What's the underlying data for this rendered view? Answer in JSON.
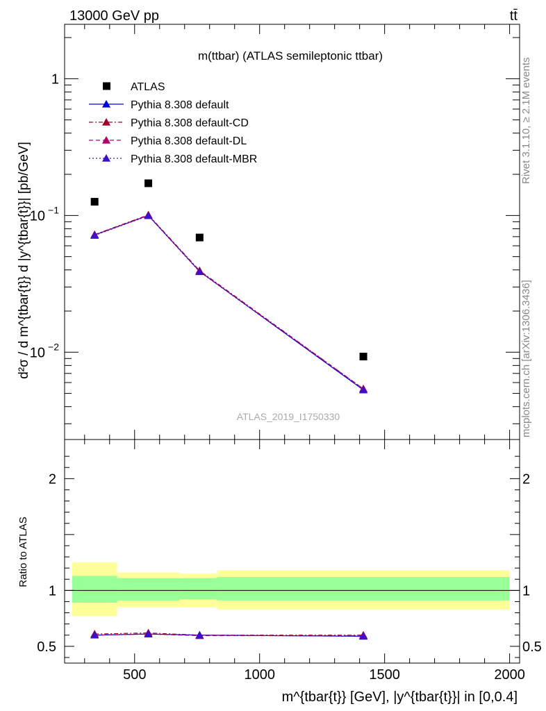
{
  "header": {
    "left": "13000 GeV pp",
    "right": "tt̄"
  },
  "side_labels": {
    "rivet": "Rivet 3.1.10, ≥ 2.1M events",
    "source": "mcplots.cern.ch [arXiv:1306.3436]"
  },
  "chart_data": [
    {
      "type": "scatter",
      "title": "m(ttbar) (ATLAS semileptonic ttbar)",
      "watermark": "ATLAS_2019_I1750330",
      "ylabel": "d²σ / d m^{tbar{t}} d |y^{tbar{t}}| [pb/GeV]",
      "yscale": "log",
      "xlim": [
        220,
        2040
      ],
      "ylim": [
        0.0023,
        2.5
      ],
      "yticks": [
        {
          "value": 1,
          "label": "1"
        },
        {
          "value": 0.1,
          "label": "10",
          "exp": "−1"
        },
        {
          "value": 0.01,
          "label": "10",
          "exp": "−2"
        }
      ],
      "legend_position": "top-left",
      "series": [
        {
          "name": "ATLAS",
          "style": "data",
          "color": "#000000",
          "x": [
            340,
            555,
            760,
            1415
          ],
          "y": [
            0.126,
            0.172,
            0.069,
            0.0093
          ]
        },
        {
          "name": "Pythia 8.308 default",
          "style": "solid",
          "color": "#0000dd",
          "x": [
            340,
            555,
            760,
            1415
          ],
          "y": [
            0.072,
            0.1,
            0.039,
            0.0053
          ]
        },
        {
          "name": "Pythia 8.308 default-CD",
          "style": "dashdot",
          "color": "#a0002a",
          "x": [
            340,
            555,
            760,
            1415
          ],
          "y": [
            0.0725,
            0.101,
            0.0395,
            0.0054
          ]
        },
        {
          "name": "Pythia 8.308 default-DL",
          "style": "dashed",
          "color": "#b0006a",
          "x": [
            340,
            555,
            760,
            1415
          ],
          "y": [
            0.072,
            0.1005,
            0.039,
            0.0054
          ]
        },
        {
          "name": "Pythia 8.308 default-MBR",
          "style": "dotted",
          "color": "#3a10c8",
          "x": [
            340,
            555,
            760,
            1415
          ],
          "y": [
            0.0715,
            0.0995,
            0.0388,
            0.0053
          ]
        }
      ]
    },
    {
      "type": "scatter",
      "ylabel": "Ratio to ATLAS",
      "xlabel": "m^{tbar{t}} [GeV], |y^{tbar{t}}| in [0,0.4]",
      "xlim": [
        220,
        2040
      ],
      "ylim": [
        0.35,
        2.35
      ],
      "xticks": [
        500,
        1000,
        1500,
        2000
      ],
      "yticks": [
        0.5,
        1,
        2
      ],
      "bands": [
        {
          "x0": 250,
          "x1": 430,
          "inner": [
            0.89,
            1.13
          ],
          "outer": [
            0.77,
            1.25
          ]
        },
        {
          "x0": 430,
          "x1": 680,
          "inner": [
            0.91,
            1.11
          ],
          "outer": [
            0.85,
            1.16
          ]
        },
        {
          "x0": 680,
          "x1": 830,
          "inner": [
            0.92,
            1.11
          ],
          "outer": [
            0.85,
            1.15
          ]
        },
        {
          "x0": 830,
          "x1": 2000,
          "inner": [
            0.91,
            1.12
          ],
          "outer": [
            0.83,
            1.18
          ]
        }
      ],
      "band_colors": {
        "inner": "#99ff99",
        "outer": "#ffff99"
      },
      "series": [
        {
          "name": "Pythia 8.308 default",
          "color": "#0000dd",
          "style": "solid",
          "x": [
            340,
            555,
            760,
            1415
          ],
          "y": [
            0.6,
            0.61,
            0.6,
            0.59
          ]
        },
        {
          "name": "Pythia 8.308 default-CD",
          "color": "#a0002a",
          "style": "dashdot",
          "x": [
            340,
            555,
            760,
            1415
          ],
          "y": [
            0.61,
            0.62,
            0.6,
            0.6
          ]
        },
        {
          "name": "Pythia 8.308 default-DL",
          "color": "#b0006a",
          "style": "dashed",
          "x": [
            340,
            555,
            760,
            1415
          ],
          "y": [
            0.6,
            0.61,
            0.595,
            0.595
          ]
        },
        {
          "name": "Pythia 8.308 default-MBR",
          "color": "#3a10c8",
          "style": "dotted",
          "x": [
            340,
            555,
            760,
            1415
          ],
          "y": [
            0.6,
            0.61,
            0.6,
            0.59
          ]
        }
      ]
    }
  ]
}
